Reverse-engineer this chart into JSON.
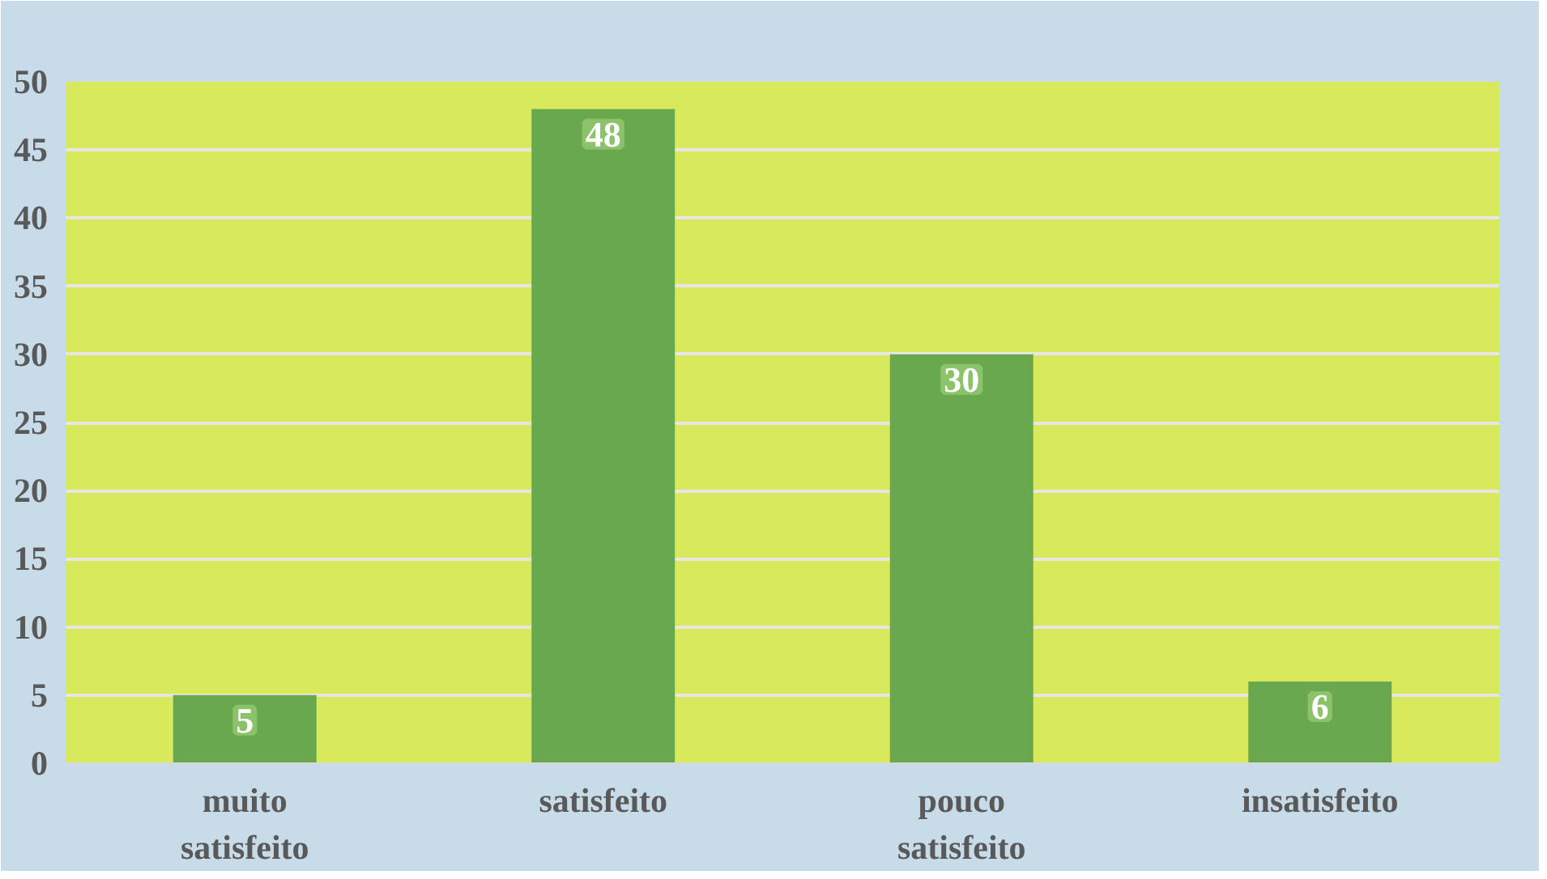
{
  "chart_data": {
    "type": "bar",
    "categories": [
      "muito satisfeito",
      "satisfeito",
      "pouco satisfeito",
      "insatisfeito"
    ],
    "values": [
      5,
      48,
      30,
      6
    ],
    "color": "#6aa84f",
    "ylim": [
      0,
      50
    ],
    "yticks": [
      0,
      5,
      10,
      15,
      20,
      25,
      30,
      35,
      40,
      45,
      50
    ],
    "grid": "y",
    "data_labels": true
  }
}
